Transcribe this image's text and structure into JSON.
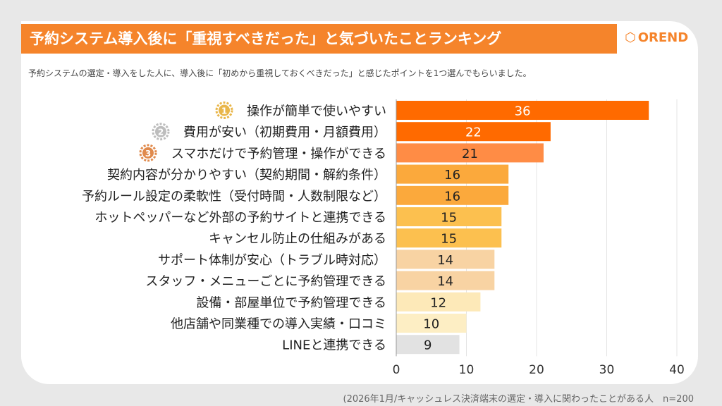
{
  "header": {
    "title": "予約システム導入後に「重視すべきだった」と気づいたことランキング",
    "logo": "OREND",
    "subtitle": "予約システムの選定・導入をした人に、導入後に「初めから重視しておくべきだった」と感じたポイントを1つ選んでもらいました。"
  },
  "footer": "(2026年1月/キャッシュレス決済端末の選定・導入に関わったことがある人　n=200",
  "chart_data": {
    "type": "bar",
    "orientation": "horizontal",
    "categories": [
      "操作が簡単で使いやすい",
      "費用が安い（初期費用・月額費用）",
      "スマホだけで予約管理・操作ができる",
      "契約内容が分かりやすい（契約期間・解約条件）",
      "予約ルール設定の柔軟性（受付時間・人数制限など）",
      "ホットペッパーなど外部の予約サイトと連携できる",
      "キャンセル防止の仕組みがある",
      "サポート体制が安心（トラブル時対応）",
      "スタッフ・メニューごとに予約管理できる",
      "設備・部屋単位で予約管理できる",
      "他店舗や同業種での導入実績・口コミ",
      "LINEと連携できる"
    ],
    "values": [
      36,
      22,
      21,
      16,
      16,
      15,
      15,
      14,
      14,
      12,
      10,
      9
    ],
    "colors": [
      "#ff6a00",
      "#ff6a00",
      "#ff8c45",
      "#fba93c",
      "#fba93c",
      "#fcc04f",
      "#fcc04f",
      "#f8d3a3",
      "#f8d3a3",
      "#fde9b8",
      "#fdeec4",
      "#e2e2e2"
    ],
    "label_colors": [
      "#ffffff",
      "#ffffff",
      "#222222",
      "#222222",
      "#222222",
      "#222222",
      "#222222",
      "#222222",
      "#222222",
      "#222222",
      "#222222",
      "#222222"
    ],
    "ranks": [
      "1",
      "2",
      "3"
    ],
    "rank_colors": [
      "#e9b64a",
      "#bdbdbd",
      "#e08a4c"
    ],
    "xlim": [
      0,
      40
    ],
    "xticks": [
      0,
      10,
      20,
      30,
      40
    ],
    "grid": true
  }
}
